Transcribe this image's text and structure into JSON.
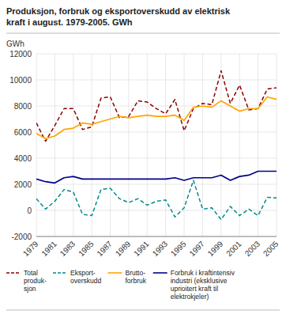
{
  "chart_data": {
    "type": "line",
    "title": "Produksjon, forbruk og eksportoverskudd av elektrisk\nkraft i august. 1979-2005. GWh",
    "ylabel": "GWh",
    "x": [
      1979,
      1980,
      1981,
      1982,
      1983,
      1984,
      1985,
      1986,
      1987,
      1988,
      1989,
      1990,
      1991,
      1992,
      1993,
      1994,
      1995,
      1996,
      1997,
      1998,
      1999,
      2000,
      2001,
      2002,
      2003,
      2004,
      2005
    ],
    "xlim": [
      1979,
      2005
    ],
    "xticks": [
      1979,
      1981,
      1983,
      1985,
      1987,
      1989,
      1991,
      1993,
      1995,
      1997,
      1999,
      2001,
      2003,
      2005
    ],
    "ylim": [
      -2000,
      12000
    ],
    "yticks": [
      -2000,
      0,
      2000,
      4000,
      6000,
      8000,
      10000,
      12000
    ],
    "grid": true,
    "legend": "bottom",
    "series": [
      {
        "name": "Total\nproduk-\nsjon",
        "color": "#8B0000",
        "line_style": "dashed",
        "values": [
          6700,
          5300,
          6500,
          7800,
          7800,
          6200,
          6400,
          8600,
          8700,
          7100,
          7200,
          8400,
          8300,
          7800,
          7400,
          8500,
          6100,
          7800,
          8200,
          8100,
          10700,
          8200,
          9600,
          7700,
          7800,
          9300,
          9400
        ]
      },
      {
        "name": "Eksport-\noverskudd",
        "color": "#008B8B",
        "line_style": "dashed",
        "values": [
          900,
          100,
          700,
          1600,
          1400,
          -300,
          -400,
          1600,
          1700,
          900,
          600,
          900,
          400,
          700,
          800,
          -500,
          200,
          2300,
          100,
          200,
          -700,
          300,
          -400,
          100,
          -400,
          1000,
          950
        ]
      },
      {
        "name": "Brutto-\nforbruk",
        "color": "#FFA500",
        "line_style": "solid",
        "values": [
          5900,
          5500,
          5700,
          6200,
          6300,
          6700,
          6600,
          6800,
          7000,
          7200,
          7100,
          7200,
          7300,
          7200,
          7200,
          7300,
          6900,
          7900,
          8000,
          7900,
          8400,
          8000,
          7600,
          7800,
          7800,
          8700,
          8500
        ]
      },
      {
        "name": "Forbruk i kraftintensiv\nindustri (eksklusive\nuprioitert kraft til\nelektrokjeler)",
        "color": "#00008B",
        "line_style": "solid",
        "values": [
          2400,
          2200,
          2100,
          2500,
          2600,
          2400,
          2400,
          2400,
          2400,
          2400,
          2400,
          2400,
          2400,
          2400,
          2400,
          2500,
          2300,
          2500,
          2500,
          2500,
          2700,
          2300,
          2600,
          2700,
          3000,
          3000,
          3000
        ]
      }
    ]
  }
}
